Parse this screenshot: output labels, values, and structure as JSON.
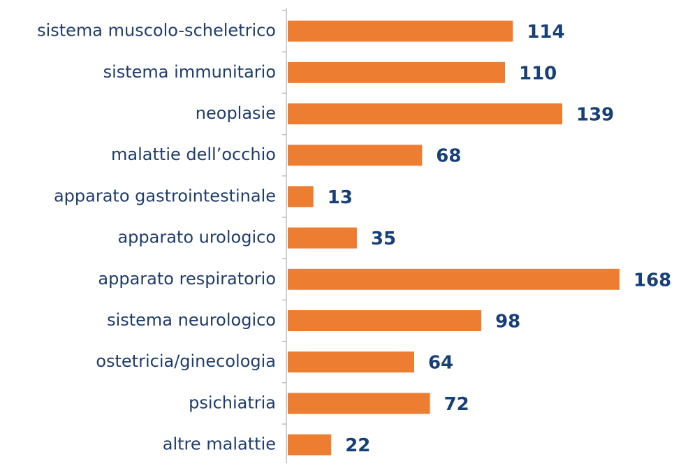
{
  "chart_data": {
    "type": "barh",
    "categories": [
      "sistema muscolo-scheletrico",
      "sistema immunitario",
      "neoplasie",
      "malattie dell’occhio",
      "apparato gastrointestinale",
      "apparato urologico",
      "apparato respiratorio",
      "sistema neurologico",
      "ostetricia/ginecologia",
      "psichiatria",
      "altre malattie"
    ],
    "values": [
      114,
      110,
      139,
      68,
      13,
      35,
      168,
      98,
      64,
      72,
      22
    ],
    "color": "#ed7d31"
  }
}
